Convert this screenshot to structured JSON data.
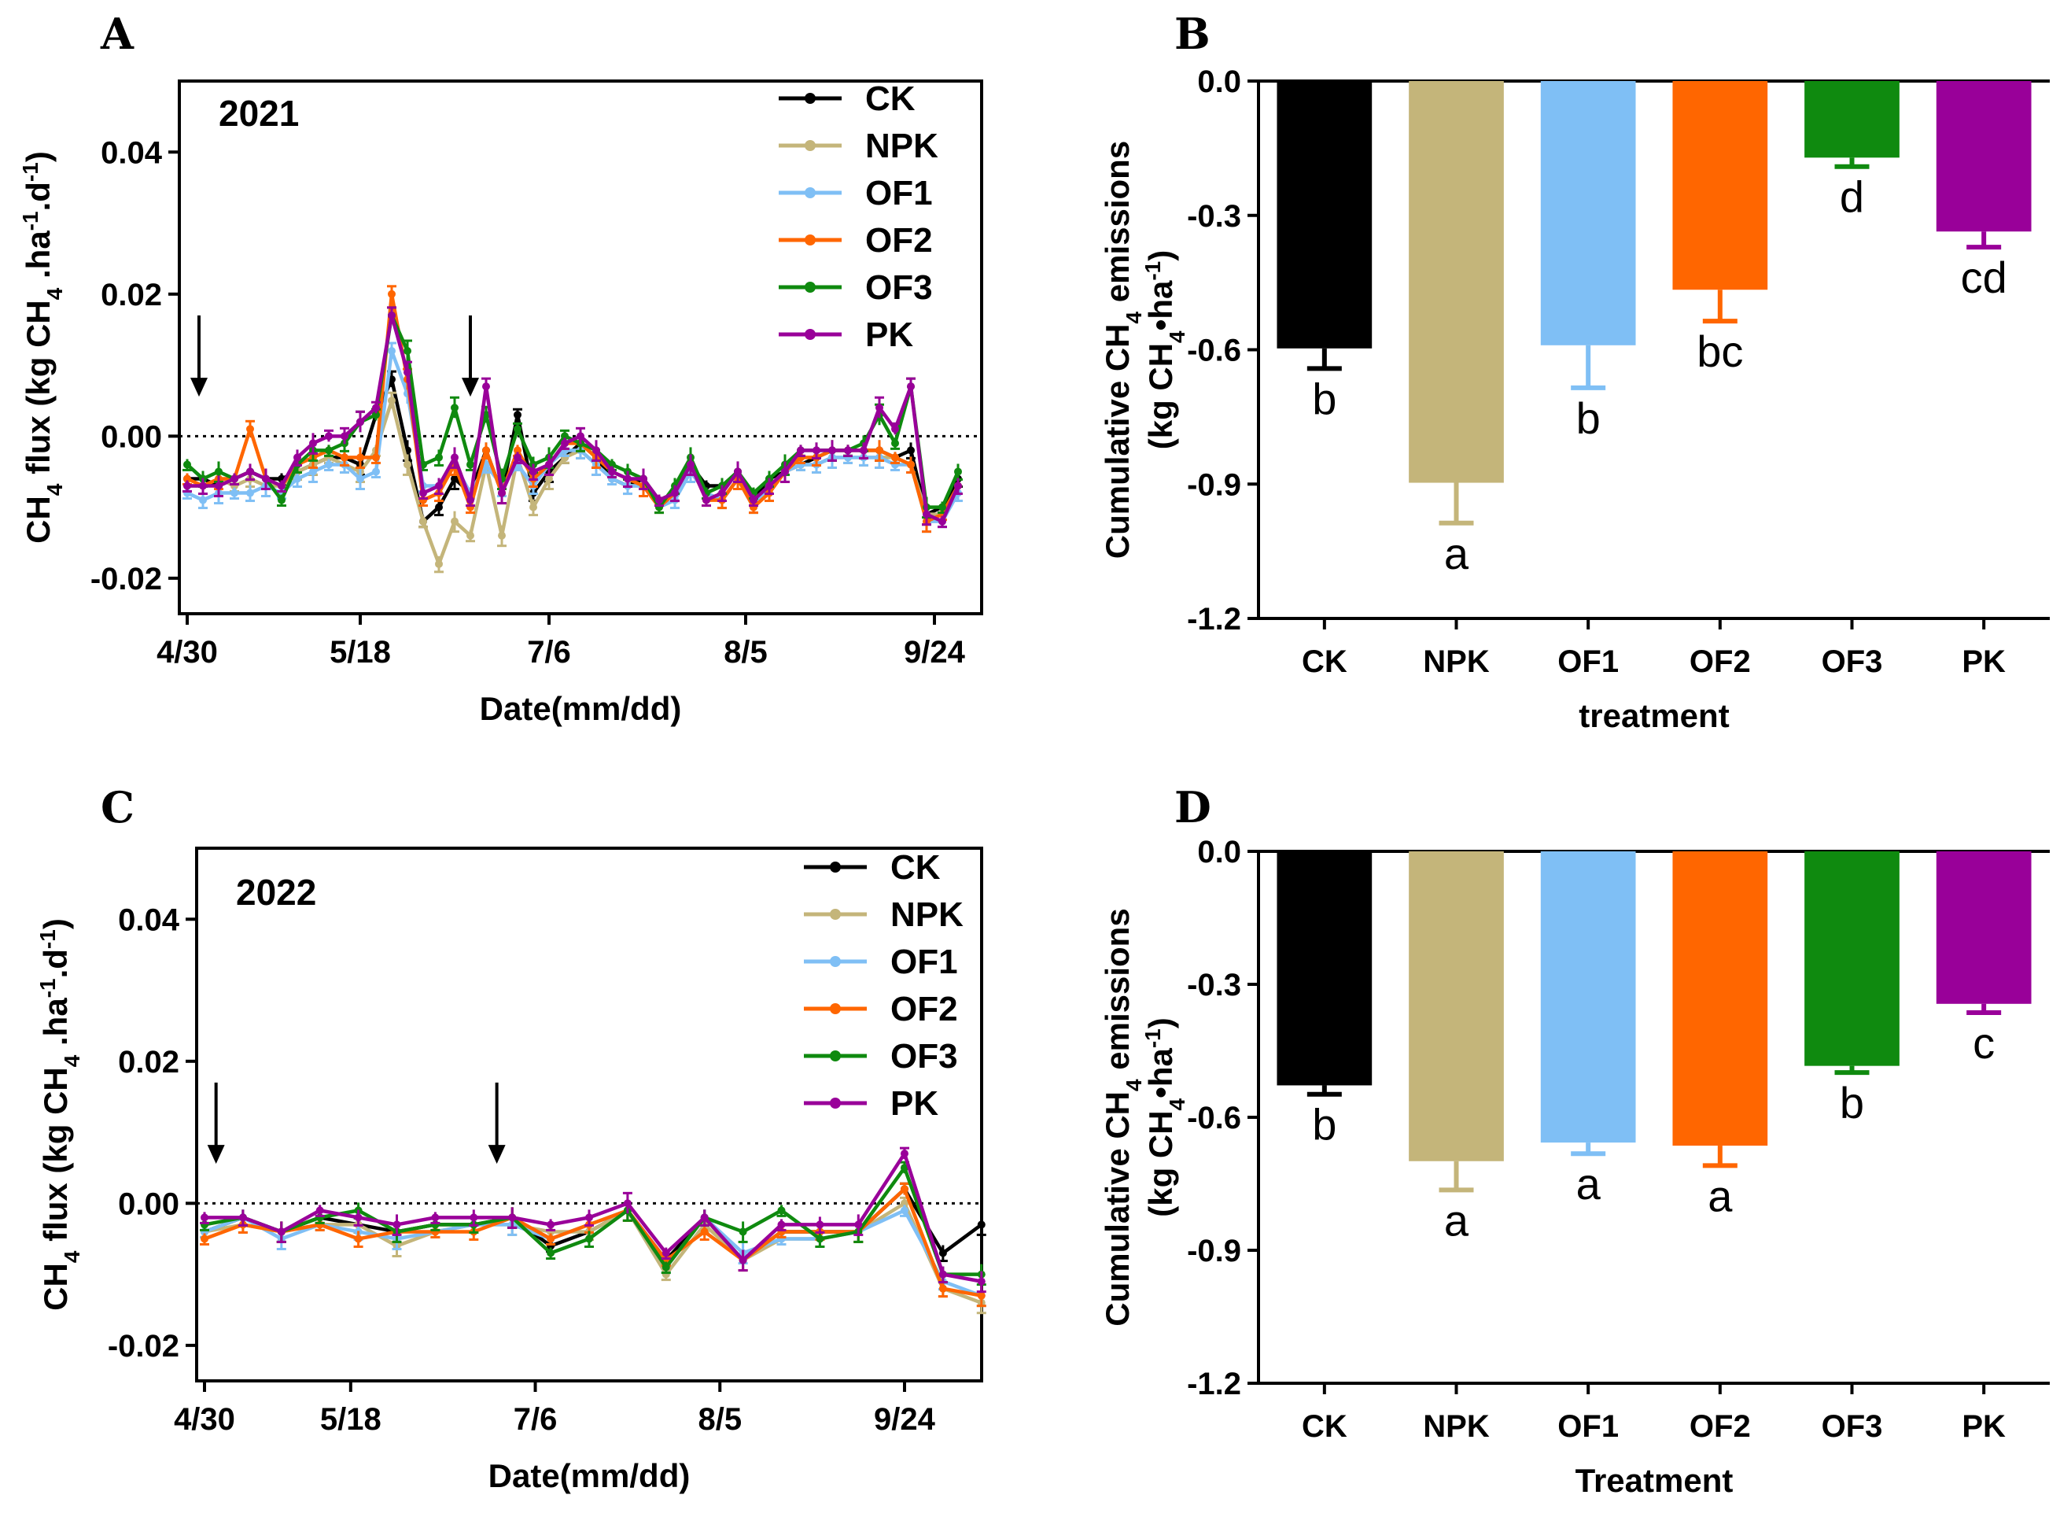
{
  "chart_data": [
    {
      "panel": "A",
      "type": "line",
      "year_label": "2021",
      "ylabel_main": "CH",
      "ylabel_sub": "4",
      "ylabel_rest": " flux (kg CH",
      "ylabel_sub2": "4",
      "ylabel_rest2": " .ha",
      "ylabel_sup1": "-1",
      "ylabel_rest3": ".d",
      "ylabel_sup2": "-1",
      "ylabel_end": ")",
      "xlabel": "Date(mm/dd)",
      "ylim": [
        -0.025,
        0.05
      ],
      "yticks": [
        -0.02,
        0.0,
        0.02,
        0.04
      ],
      "ytick_labels": [
        "-0.02",
        "0.00",
        "0.02",
        "0.04"
      ],
      "xlim": [
        0,
        100
      ],
      "xticks": [
        0,
        22,
        46,
        71,
        95
      ],
      "xtick_labels": [
        "4/30",
        "5/18",
        "7/6",
        "8/5",
        "9/24"
      ],
      "reference_line": 0.0,
      "fertilization_arrows_x": [
        1.5,
        36
      ],
      "x": [
        0,
        2,
        4,
        6,
        8,
        10,
        12,
        14,
        16,
        18,
        20,
        22,
        24,
        26,
        28,
        30,
        32,
        34,
        36,
        38,
        40,
        42,
        44,
        46,
        48,
        50,
        52,
        54,
        56,
        58,
        60,
        62,
        64,
        66,
        68,
        70,
        72,
        74,
        76,
        78,
        80,
        82,
        84,
        86,
        88,
        90,
        92,
        94,
        96,
        98
      ],
      "series": [
        {
          "name": "CK",
          "color": "#000000",
          "values": [
            -0.006,
            -0.006,
            -0.007,
            -0.006,
            -0.005,
            -0.006,
            -0.006,
            -0.005,
            -0.004,
            -0.003,
            -0.003,
            -0.004,
            0.003,
            0.008,
            -0.002,
            -0.012,
            -0.01,
            -0.006,
            -0.008,
            -0.002,
            -0.008,
            0.003,
            -0.008,
            -0.005,
            -0.003,
            -0.001,
            -0.003,
            -0.006,
            -0.007,
            -0.006,
            -0.009,
            -0.008,
            -0.004,
            -0.007,
            -0.007,
            -0.005,
            -0.009,
            -0.006,
            -0.005,
            -0.004,
            -0.003,
            -0.002,
            -0.002,
            -0.002,
            -0.002,
            -0.003,
            -0.002,
            -0.011,
            -0.01,
            -0.006
          ]
        },
        {
          "name": "NPK",
          "color": "#C4B57A",
          "values": [
            -0.007,
            -0.007,
            -0.006,
            -0.007,
            -0.006,
            -0.007,
            -0.007,
            -0.005,
            -0.004,
            -0.003,
            -0.004,
            -0.005,
            -0.002,
            0.005,
            -0.004,
            -0.012,
            -0.018,
            -0.012,
            -0.014,
            -0.004,
            -0.014,
            -0.003,
            -0.01,
            -0.006,
            -0.003,
            -0.002,
            -0.004,
            -0.006,
            -0.007,
            -0.007,
            -0.009,
            -0.008,
            -0.005,
            -0.008,
            -0.009,
            -0.006,
            -0.01,
            -0.007,
            -0.005,
            -0.004,
            -0.004,
            -0.003,
            -0.003,
            -0.003,
            -0.003,
            -0.003,
            -0.004,
            -0.011,
            -0.011,
            -0.007
          ]
        },
        {
          "name": "OF1",
          "color": "#7FBFF5",
          "values": [
            -0.008,
            -0.009,
            -0.008,
            -0.008,
            -0.008,
            -0.007,
            -0.008,
            -0.006,
            -0.005,
            -0.004,
            -0.004,
            -0.006,
            -0.005,
            0.012,
            0.006,
            -0.007,
            -0.007,
            -0.004,
            -0.008,
            -0.004,
            -0.007,
            -0.004,
            -0.007,
            -0.004,
            -0.002,
            -0.002,
            -0.004,
            -0.006,
            -0.007,
            -0.007,
            -0.01,
            -0.009,
            -0.005,
            -0.008,
            -0.009,
            -0.006,
            -0.01,
            -0.007,
            -0.005,
            -0.004,
            -0.004,
            -0.003,
            -0.003,
            -0.003,
            -0.003,
            -0.004,
            -0.004,
            -0.012,
            -0.012,
            -0.008
          ]
        },
        {
          "name": "OF2",
          "color": "#FF6600",
          "values": [
            -0.006,
            -0.007,
            -0.006,
            -0.006,
            0.001,
            -0.006,
            -0.007,
            -0.004,
            -0.003,
            -0.002,
            -0.003,
            -0.003,
            -0.003,
            0.02,
            0.008,
            -0.009,
            -0.008,
            -0.004,
            -0.01,
            -0.002,
            -0.008,
            -0.002,
            -0.006,
            -0.004,
            -0.001,
            -0.001,
            -0.003,
            -0.005,
            -0.006,
            -0.007,
            -0.01,
            -0.008,
            -0.004,
            -0.009,
            -0.009,
            -0.006,
            -0.01,
            -0.008,
            -0.005,
            -0.003,
            -0.003,
            -0.002,
            -0.002,
            -0.002,
            -0.002,
            -0.003,
            -0.004,
            -0.012,
            -0.011,
            -0.007
          ]
        },
        {
          "name": "OF3",
          "color": "#0F8A0F",
          "values": [
            -0.004,
            -0.006,
            -0.005,
            -0.006,
            -0.005,
            -0.006,
            -0.009,
            -0.004,
            -0.002,
            -0.002,
            -0.001,
            0.002,
            0.003,
            0.017,
            0.012,
            -0.004,
            -0.003,
            0.004,
            -0.004,
            0.003,
            -0.006,
            0.001,
            -0.004,
            -0.003,
            0.0,
            -0.001,
            -0.002,
            -0.004,
            -0.005,
            -0.006,
            -0.01,
            -0.007,
            -0.003,
            -0.008,
            -0.007,
            -0.005,
            -0.008,
            -0.006,
            -0.004,
            -0.002,
            -0.002,
            -0.002,
            -0.002,
            -0.001,
            0.003,
            -0.001,
            0.007,
            -0.01,
            -0.01,
            -0.005
          ]
        },
        {
          "name": "PK",
          "color": "#990099",
          "values": [
            -0.007,
            -0.007,
            -0.007,
            -0.006,
            -0.005,
            -0.006,
            -0.007,
            -0.003,
            -0.001,
            0.0,
            0.0,
            0.002,
            0.004,
            0.017,
            0.009,
            -0.008,
            -0.007,
            -0.003,
            -0.009,
            0.007,
            -0.008,
            -0.003,
            -0.005,
            -0.004,
            -0.001,
            0.0,
            -0.002,
            -0.005,
            -0.006,
            -0.006,
            -0.009,
            -0.008,
            -0.004,
            -0.009,
            -0.008,
            -0.005,
            -0.009,
            -0.007,
            -0.005,
            -0.002,
            -0.002,
            -0.002,
            -0.002,
            -0.002,
            0.004,
            0.001,
            0.007,
            -0.011,
            -0.012,
            -0.007
          ]
        }
      ],
      "legend": [
        "CK",
        "NPK",
        "OF1",
        "OF2",
        "OF3",
        "PK"
      ]
    },
    {
      "panel": "B",
      "type": "bar",
      "ylabel_line1": "Cumulative CH",
      "ylabel_line1_sub": "4",
      "ylabel_line1_end": " emissions",
      "ylabel_line2": "(kg CH",
      "ylabel_line2_sub": "4",
      "ylabel_line2_mid": "•ha",
      "ylabel_line2_sup": "-1",
      "ylabel_line2_end": ")",
      "xlabel": "treatment",
      "ylim": [
        -1.2,
        0.0
      ],
      "yticks": [
        0.0,
        -0.3,
        -0.6,
        -0.9,
        -1.2
      ],
      "ytick_labels": [
        "0.0",
        "-0.3",
        "-0.6",
        "-0.9",
        "-1.2"
      ],
      "categories": [
        "CK",
        "NPK",
        "OF1",
        "OF2",
        "OF3",
        "PK"
      ],
      "values": [
        -0.597,
        -0.897,
        -0.59,
        -0.466,
        -0.171,
        -0.336
      ],
      "errors": [
        0.045,
        0.09,
        0.095,
        0.07,
        0.02,
        0.035
      ],
      "colors": [
        "#000000",
        "#C4B57A",
        "#7FBFF5",
        "#FF6600",
        "#0F8A0F",
        "#990099"
      ],
      "letters": [
        "b",
        "a",
        "b",
        "bc",
        "d",
        "cd"
      ]
    },
    {
      "panel": "C",
      "type": "line",
      "year_label": "2022",
      "ylabel_main": "CH",
      "ylabel_sub": "4",
      "ylabel_rest": " flux (kg CH",
      "ylabel_sub2": "4",
      "ylabel_rest2": " .ha",
      "ylabel_sup1": "-1",
      "ylabel_rest3": ".d",
      "ylabel_sup2": "-1",
      "ylabel_end": ")",
      "xlabel": "Date(mm/dd)",
      "ylim": [
        -0.025,
        0.05
      ],
      "yticks": [
        -0.02,
        0.0,
        0.02,
        0.04
      ],
      "ytick_labels": [
        "-0.02",
        "0.00",
        "0.02",
        "0.04"
      ],
      "xlim": [
        0,
        100
      ],
      "xticks": [
        0,
        19,
        43,
        67,
        91
      ],
      "xtick_labels": [
        "4/30",
        "5/18",
        "7/6",
        "8/5",
        "9/24"
      ],
      "reference_line": 0.0,
      "fertilization_arrows_x": [
        1.5,
        38
      ],
      "x": [
        0,
        5,
        10,
        15,
        20,
        25,
        30,
        35,
        40,
        45,
        50,
        55,
        60,
        65,
        70,
        75,
        80,
        85,
        91,
        96,
        101
      ],
      "series": [
        {
          "name": "CK",
          "color": "#000000",
          "values": [
            -0.004,
            -0.002,
            -0.004,
            -0.002,
            -0.003,
            -0.004,
            -0.003,
            -0.003,
            -0.002,
            -0.006,
            -0.004,
            -0.001,
            -0.008,
            -0.002,
            -0.008,
            -0.004,
            -0.004,
            -0.004,
            0.002,
            -0.007,
            -0.003
          ]
        },
        {
          "name": "NPK",
          "color": "#C4B57A",
          "values": [
            -0.004,
            -0.003,
            -0.004,
            -0.003,
            -0.003,
            -0.006,
            -0.004,
            -0.003,
            -0.003,
            -0.004,
            -0.004,
            -0.001,
            -0.01,
            -0.003,
            -0.008,
            -0.005,
            -0.005,
            -0.004,
            0.0,
            -0.012,
            -0.014
          ]
        },
        {
          "name": "OF1",
          "color": "#7FBFF5",
          "values": [
            -0.004,
            -0.002,
            -0.005,
            -0.003,
            -0.004,
            -0.005,
            -0.004,
            -0.003,
            -0.003,
            -0.005,
            -0.003,
            -0.001,
            -0.009,
            -0.002,
            -0.007,
            -0.005,
            -0.005,
            -0.004,
            -0.001,
            -0.011,
            -0.013
          ]
        },
        {
          "name": "OF2",
          "color": "#FF6600",
          "values": [
            -0.005,
            -0.003,
            -0.004,
            -0.003,
            -0.005,
            -0.004,
            -0.004,
            -0.004,
            -0.002,
            -0.005,
            -0.003,
            -0.001,
            -0.008,
            -0.004,
            -0.008,
            -0.004,
            -0.004,
            -0.004,
            0.002,
            -0.012,
            -0.013
          ]
        },
        {
          "name": "OF3",
          "color": "#0F8A0F",
          "values": [
            -0.003,
            -0.002,
            -0.004,
            -0.002,
            -0.001,
            -0.004,
            -0.003,
            -0.003,
            -0.002,
            -0.007,
            -0.005,
            -0.001,
            -0.009,
            -0.002,
            -0.004,
            -0.001,
            -0.005,
            -0.004,
            0.005,
            -0.01,
            -0.01
          ]
        },
        {
          "name": "PK",
          "color": "#990099",
          "values": [
            -0.002,
            -0.002,
            -0.004,
            -0.001,
            -0.002,
            -0.003,
            -0.002,
            -0.002,
            -0.002,
            -0.003,
            -0.002,
            0.0,
            -0.007,
            -0.002,
            -0.008,
            -0.003,
            -0.003,
            -0.003,
            0.007,
            -0.01,
            -0.011
          ]
        }
      ],
      "legend": [
        "CK",
        "NPK",
        "OF1",
        "OF2",
        "OF3",
        "PK"
      ]
    },
    {
      "panel": "D",
      "type": "bar",
      "ylabel_line1": "Cumulative CH",
      "ylabel_line1_sub": "4",
      "ylabel_line1_end": " emissions",
      "ylabel_line2": "(kg CH",
      "ylabel_line2_sub": "4",
      "ylabel_line2_mid": "•ha",
      "ylabel_line2_sup": "-1",
      "ylabel_line2_end": ")",
      "xlabel": "Treatment",
      "ylim": [
        -1.2,
        0.0
      ],
      "yticks": [
        0.0,
        -0.3,
        -0.6,
        -0.9,
        -1.2
      ],
      "ytick_labels": [
        "0.0",
        "-0.3",
        "-0.6",
        "-0.9",
        "-1.2"
      ],
      "categories": [
        "CK",
        "NPK",
        "OF1",
        "OF2",
        "OF3",
        "PK"
      ],
      "values": [
        -0.528,
        -0.699,
        -0.657,
        -0.664,
        -0.484,
        -0.344
      ],
      "errors": [
        0.02,
        0.065,
        0.025,
        0.045,
        0.015,
        0.02
      ],
      "colors": [
        "#000000",
        "#C4B57A",
        "#7FBFF5",
        "#FF6600",
        "#0F8A0F",
        "#990099"
      ],
      "letters": [
        "b",
        "a",
        "a",
        "a",
        "b",
        "c"
      ]
    }
  ]
}
